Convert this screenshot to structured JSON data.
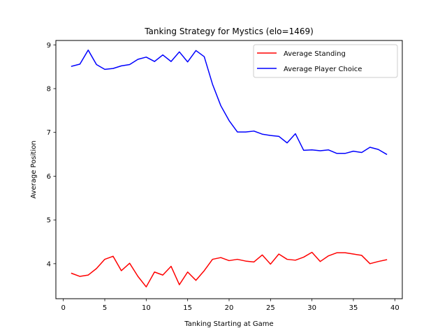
{
  "chart_data": {
    "type": "line",
    "title": "Tanking Strategy for Mystics (elo=1469)",
    "xlabel": "Tanking Starting at Game",
    "ylabel": "Average Position",
    "xlim": [
      -0.9,
      40.9
    ],
    "ylim": [
      3.2,
      9.1
    ],
    "xticks": [
      0,
      5,
      10,
      15,
      20,
      25,
      30,
      35,
      40
    ],
    "yticks": [
      4,
      5,
      6,
      7,
      8,
      9
    ],
    "legend": "top-right",
    "grid": false,
    "x": [
      1,
      2,
      3,
      4,
      5,
      6,
      7,
      8,
      9,
      10,
      11,
      12,
      13,
      14,
      15,
      16,
      17,
      18,
      19,
      20,
      21,
      22,
      23,
      24,
      25,
      26,
      27,
      28,
      29,
      30,
      31,
      32,
      33,
      34,
      35,
      36,
      37,
      38,
      39
    ],
    "series": [
      {
        "name": "Average Standing",
        "color": "#ff0000",
        "values": [
          3.78,
          3.71,
          3.74,
          3.89,
          4.1,
          4.17,
          3.84,
          4.01,
          3.71,
          3.47,
          3.81,
          3.74,
          3.94,
          3.52,
          3.81,
          3.62,
          3.84,
          4.1,
          4.14,
          4.07,
          4.1,
          4.06,
          4.04,
          4.2,
          3.99,
          4.22,
          4.1,
          4.08,
          4.15,
          4.26,
          4.05,
          4.18,
          4.25,
          4.25,
          4.22,
          4.19,
          4.0,
          4.05,
          4.09
        ]
      },
      {
        "name": "Average Player Choice",
        "color": "#0000ff",
        "values": [
          8.51,
          8.56,
          8.88,
          8.55,
          8.44,
          8.46,
          8.52,
          8.55,
          8.67,
          8.72,
          8.62,
          8.77,
          8.62,
          8.84,
          8.61,
          8.87,
          8.73,
          8.1,
          7.61,
          7.27,
          7.01,
          7.01,
          7.03,
          6.96,
          6.93,
          6.91,
          6.76,
          6.97,
          6.59,
          6.6,
          6.58,
          6.6,
          6.52,
          6.52,
          6.57,
          6.54,
          6.66,
          6.61,
          6.5
        ]
      }
    ]
  }
}
